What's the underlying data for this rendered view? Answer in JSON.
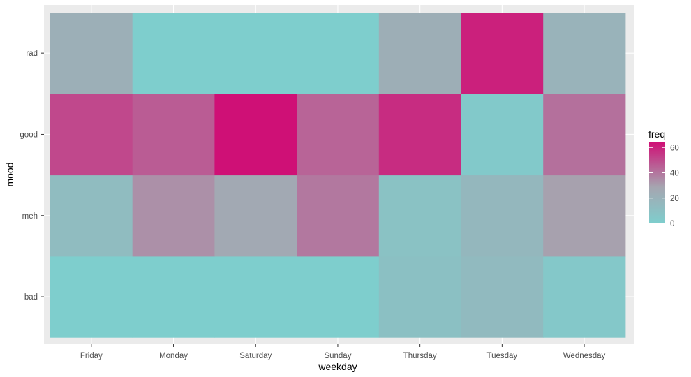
{
  "chart_data": {
    "type": "heatmap",
    "x_categories": [
      "Friday",
      "Monday",
      "Saturday",
      "Sunday",
      "Thursday",
      "Tuesday",
      "Wednesday"
    ],
    "y_categories": [
      "bad",
      "meh",
      "good",
      "rad"
    ],
    "values": {
      "rad": [
        20,
        0,
        0,
        0,
        21,
        60,
        18
      ],
      "good": [
        50,
        45,
        64,
        43,
        57,
        3,
        40
      ],
      "meh": [
        12,
        32,
        24,
        38,
        8,
        15,
        28
      ],
      "bad": [
        0,
        0,
        0,
        0,
        9,
        13,
        4
      ]
    },
    "xlabel": "weekday",
    "ylabel": "mood",
    "legend": {
      "title": "freq",
      "ticks": [
        0,
        20,
        40,
        60
      ],
      "range": [
        0,
        64
      ],
      "low_color": "#7ececd",
      "mid_color": "#a6a5b0",
      "high_color": "#cf1076",
      "placement": "right"
    },
    "panel_background": "#ebebeb",
    "grid": true
  }
}
